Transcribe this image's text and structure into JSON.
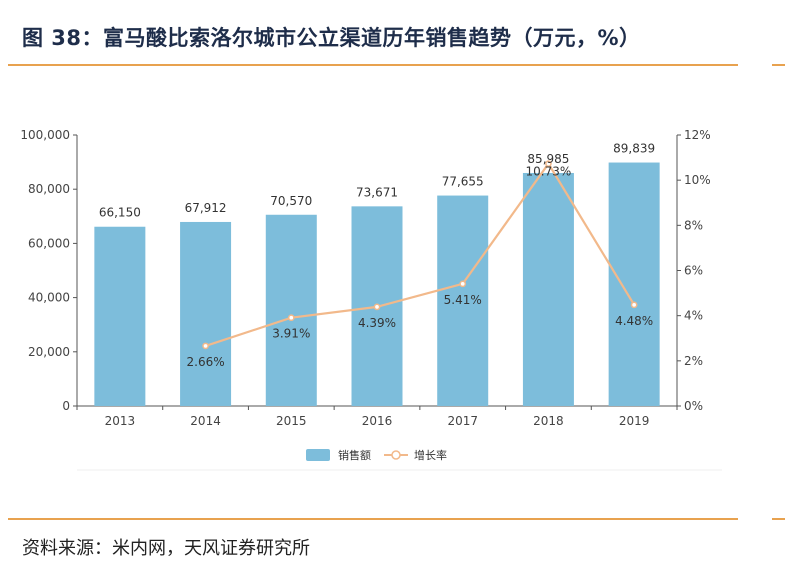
{
  "header": {
    "title": "图 38：富马酸比索洛尔城市公立渠道历年销售趋势（万元，%）"
  },
  "footer": {
    "source": "资料来源：米内网，天风证券研究所"
  },
  "chart_data": {
    "type": "bar",
    "categories": [
      "2013",
      "2014",
      "2015",
      "2016",
      "2017",
      "2018",
      "2019"
    ],
    "series": [
      {
        "name": "销售额",
        "type": "bar",
        "axis": "left",
        "color": "#7dbddb",
        "values": [
          66150,
          67912,
          70570,
          73671,
          77655,
          85985,
          89839
        ],
        "labels": [
          "66,150",
          "67,912",
          "70,570",
          "73,671",
          "77,655",
          "85,985",
          "89,839"
        ]
      },
      {
        "name": "增长率",
        "type": "line",
        "axis": "right",
        "color": "#f2b98b",
        "values": [
          null,
          2.66,
          3.91,
          4.39,
          5.41,
          10.73,
          4.48
        ],
        "labels": [
          "",
          "2.66%",
          "3.91%",
          "4.39%",
          "5.41%",
          "10.73%",
          "4.48%"
        ]
      }
    ],
    "y_left": {
      "ylim": [
        0,
        100000
      ],
      "ticks": [
        "0",
        "20,000",
        "40,000",
        "60,000",
        "80,000",
        "100,000"
      ]
    },
    "y_right": {
      "ylim": [
        0,
        12
      ],
      "ticks": [
        "0%",
        "2%",
        "4%",
        "6%",
        "8%",
        "10%",
        "12%"
      ]
    },
    "grid": false,
    "legend": "bottom-center",
    "colors": {
      "accent": "#e8a24f",
      "title": "#1e2d4a"
    }
  }
}
